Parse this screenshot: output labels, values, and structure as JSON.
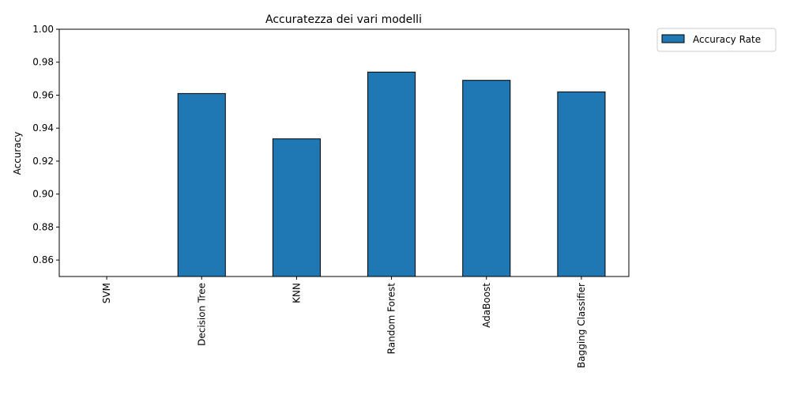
{
  "chart_data": {
    "type": "bar",
    "title": "Accuratezza dei vari modelli",
    "xlabel": "",
    "ylabel": "Accuracy",
    "categories": [
      "SVM",
      "Decision Tree",
      "KNN",
      "Random Forest",
      "AdaBoost",
      "Bagging Classifier"
    ],
    "series": [
      {
        "name": "Accuracy Rate",
        "values": [
          0.849,
          0.961,
          0.9335,
          0.974,
          0.969,
          0.962
        ],
        "color": "#1f77b4"
      }
    ],
    "ylim": [
      0.85,
      1.0
    ],
    "yticks": [
      0.86,
      0.88,
      0.9,
      0.92,
      0.94,
      0.96,
      0.98,
      1.0
    ],
    "ytick_labels": [
      "0.86",
      "0.88",
      "0.90",
      "0.92",
      "0.94",
      "0.96",
      "0.98",
      "1.00"
    ],
    "grid": false,
    "legend_position": "outside-top-right",
    "bar_edge_color": "#000000"
  }
}
